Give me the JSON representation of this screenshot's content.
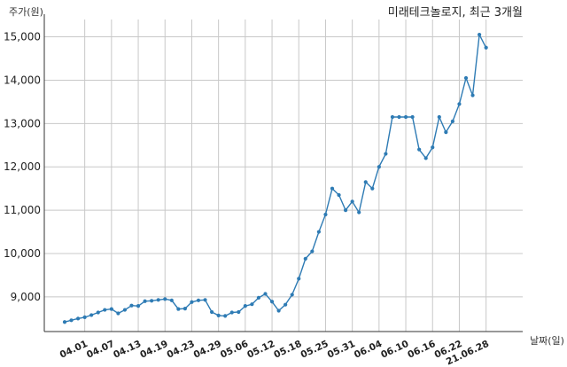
{
  "chart_data": {
    "type": "line",
    "title": "미래테크놀로지, 최근 3개월",
    "ylabel": "주가(원)",
    "xlabel": "날짜(일)",
    "ylim": [
      8200,
      15400
    ],
    "yticks": [
      9000,
      10000,
      11000,
      12000,
      13000,
      14000,
      15000
    ],
    "ytick_labels": [
      "9,000",
      "10,000",
      "11,000",
      "12,000",
      "13,000",
      "14,000",
      "15,000"
    ],
    "xtick_labels": [
      "04.01",
      "04.07",
      "04.13",
      "04.19",
      "04.23",
      "04.29",
      "05.06",
      "05.12",
      "05.18",
      "05.25",
      "05.31",
      "06.04",
      "06.10",
      "06.16",
      "06.22",
      "21.06.28"
    ],
    "xtick_indices": [
      3,
      7,
      11,
      15,
      19,
      23,
      27,
      31,
      35,
      39,
      43,
      47,
      51,
      55,
      59,
      63
    ],
    "grid": true,
    "series": [
      {
        "color": "#2e7bb4",
        "values": [
          8420,
          8460,
          8500,
          8530,
          8580,
          8640,
          8700,
          8720,
          8620,
          8700,
          8800,
          8790,
          8900,
          8910,
          8930,
          8950,
          8920,
          8720,
          8730,
          8880,
          8920,
          8930,
          8650,
          8570,
          8560,
          8640,
          8650,
          8790,
          8830,
          8980,
          9070,
          8890,
          8680,
          8820,
          9050,
          9420,
          9880,
          10050,
          10500,
          10900,
          11500,
          11350,
          11000,
          11200,
          10950,
          11650,
          11500,
          12000,
          12300,
          13150,
          13150,
          13150,
          13150,
          12400,
          12200,
          12450,
          13150,
          12800,
          13050,
          13450,
          14050,
          13650,
          15050,
          14750
        ]
      }
    ]
  }
}
